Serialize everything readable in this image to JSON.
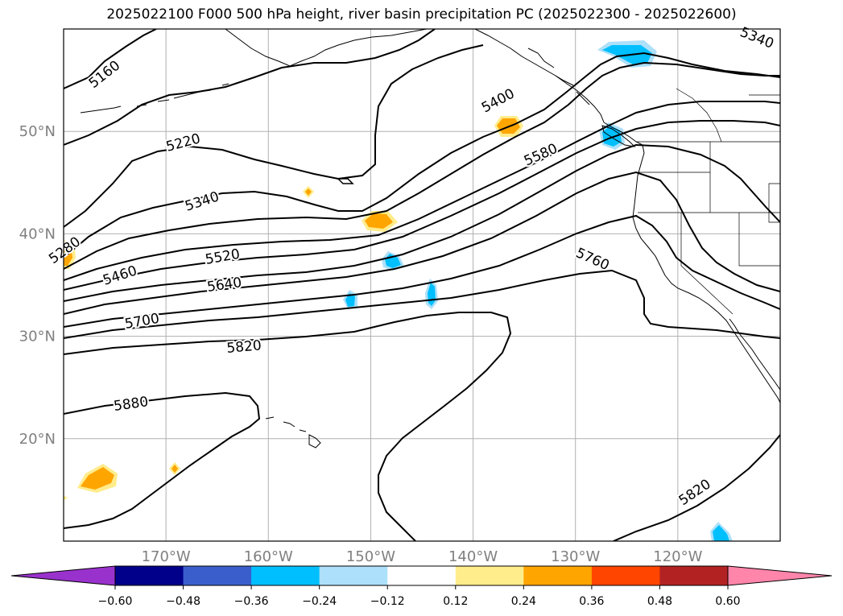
{
  "title": "2025022100 F000 500 hPa height, river basin precipitation PC (2025022300 - 2025022600)",
  "map": {
    "lon_range": [
      -180,
      -110
    ],
    "lat_range": [
      10,
      60
    ],
    "lat_ticks": [
      {
        "value": 50,
        "label": "50°N"
      },
      {
        "value": 40,
        "label": "40°N"
      },
      {
        "value": 30,
        "label": "30°N"
      },
      {
        "value": 20,
        "label": "20°N"
      }
    ],
    "lon_ticks": [
      {
        "value": -170,
        "label": "170°W"
      },
      {
        "value": -160,
        "label": "160°W"
      },
      {
        "value": -150,
        "label": "150°W"
      },
      {
        "value": -140,
        "label": "140°W"
      },
      {
        "value": -130,
        "label": "130°W"
      },
      {
        "value": -120,
        "label": "120°W"
      }
    ],
    "gridlines": true,
    "contour_labels": [
      "5160",
      "5220",
      "5280",
      "5340",
      "5340",
      "5400",
      "5460",
      "5520",
      "5580",
      "5640",
      "5700",
      "5760",
      "5820",
      "5820",
      "5880"
    ]
  },
  "colorbar": {
    "ticks": [
      "−0.60",
      "−0.48",
      "−0.36",
      "−0.24",
      "−0.12",
      "0.12",
      "0.24",
      "0.36",
      "0.48",
      "0.60"
    ],
    "colors": [
      "#9932CC",
      "#00008B",
      "#3A5FCD",
      "#00BFFF",
      "#ADE0FA",
      "#FFFFFF",
      "#FFEC8B",
      "#FFA500",
      "#FF4500",
      "#B22222",
      "#FF85AA"
    ]
  }
}
